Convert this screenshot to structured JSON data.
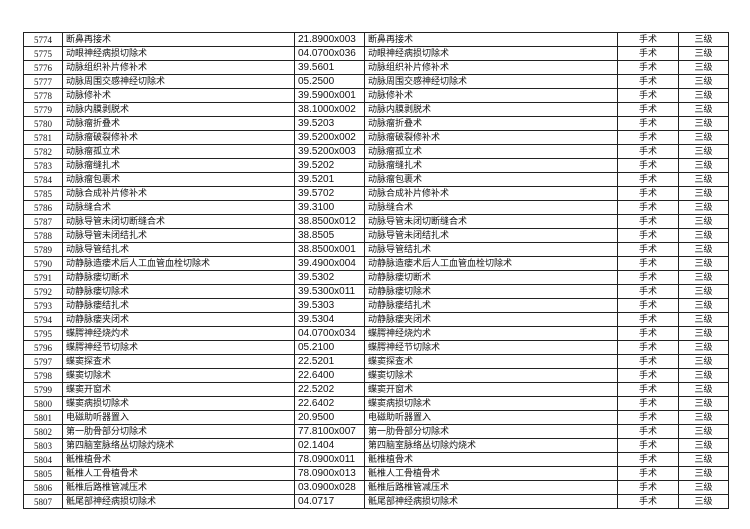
{
  "rows": [
    [
      "5774",
      "断鼻再接术",
      "21.8900x003"
    ],
    [
      "5775",
      "动眼神经病损切除术",
      "04.0700x036"
    ],
    [
      "5776",
      "动脉组织补片修补术",
      "39.5601"
    ],
    [
      "5777",
      "动脉周围交感神经切除术",
      "05.2500"
    ],
    [
      "5778",
      "动脉修补术",
      "39.5900x001"
    ],
    [
      "5779",
      "动脉内膜剥脱术",
      "38.1000x002"
    ],
    [
      "5780",
      "动脉瘤折叠术",
      "39.5203"
    ],
    [
      "5781",
      "动脉瘤破裂修补术",
      "39.5200x002"
    ],
    [
      "5782",
      "动脉瘤孤立术",
      "39.5200x003"
    ],
    [
      "5783",
      "动脉瘤缝扎术",
      "39.5202"
    ],
    [
      "5784",
      "动脉瘤包裹术",
      "39.5201"
    ],
    [
      "5785",
      "动脉合成补片修补术",
      "39.5702"
    ],
    [
      "5786",
      "动脉缝合术",
      "39.3100"
    ],
    [
      "5787",
      "动脉导管未闭切断缝合术",
      "38.8500x012"
    ],
    [
      "5788",
      "动脉导管未闭结扎术",
      "38.8505"
    ],
    [
      "5789",
      "动脉导管结扎术",
      "38.8500x001"
    ],
    [
      "5790",
      "动静脉造瘘术后人工血管血栓切除术",
      "39.4900x004"
    ],
    [
      "5791",
      "动静脉瘘切断术",
      "39.5302"
    ],
    [
      "5792",
      "动静脉瘘切除术",
      "39.5300x011"
    ],
    [
      "5793",
      "动静脉瘘结扎术",
      "39.5303"
    ],
    [
      "5794",
      "动静脉瘘夹闭术",
      "39.5304"
    ],
    [
      "5795",
      "蝶腭神经烧灼术",
      "04.0700x034"
    ],
    [
      "5796",
      "蝶腭神经节切除术",
      "05.2100"
    ],
    [
      "5797",
      "蝶窦探查术",
      "22.5201"
    ],
    [
      "5798",
      "蝶窦切除术",
      "22.6400"
    ],
    [
      "5799",
      "蝶窦开窗术",
      "22.5202"
    ],
    [
      "5800",
      "蝶窦病损切除术",
      "22.6402"
    ],
    [
      "5801",
      "电磁助听器置入",
      "20.9500"
    ],
    [
      "5802",
      "第一肋骨部分切除术",
      "77.8100x007"
    ],
    [
      "5803",
      "第四脑室脉络丛切除灼烧术",
      "02.1404"
    ],
    [
      "5804",
      "骶椎植骨术",
      "78.0900x011"
    ],
    [
      "5805",
      "骶椎人工骨植骨术",
      "78.0900x013"
    ],
    [
      "5806",
      "骶椎后路椎管减压术",
      "03.0900x028"
    ],
    [
      "5807",
      "骶尾部神经病损切除术",
      "04.0717"
    ]
  ],
  "type": "手术",
  "level": "三级"
}
